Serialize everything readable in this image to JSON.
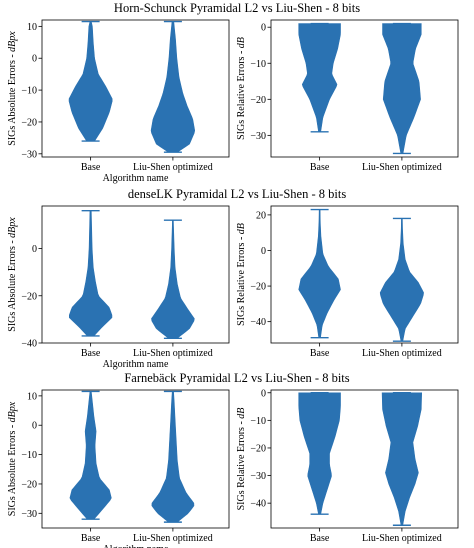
{
  "colors": {
    "violin": "#2a72b2",
    "axis": "#000000",
    "background": "#ffffff"
  },
  "rows": [
    {
      "title": "Horn-Schunck Pyramidal L2 vs Liu-Shen - 8 bits"
    },
    {
      "title": "denseLK Pyramidal L2 vs Liu-Shen - 8 bits"
    },
    {
      "title": "Farnebäck Pyramidal L2 vs Liu-Shen - 8 bits"
    }
  ],
  "chart_data": [
    {
      "type": "violin",
      "row": 0,
      "col": 0,
      "xlabel": "Algorithm name",
      "ylabel": "SIGs Absolute Errors - dBpx",
      "categories": [
        "Base",
        "Liu-Shen optimized"
      ],
      "ylim": [
        -31,
        12
      ],
      "yticks": [
        10,
        0,
        -10,
        -20,
        -30
      ],
      "series": [
        {
          "min": -26,
          "max": 11.5,
          "profile": [
            [
              -26,
              0.18
            ],
            [
              -22,
              0.55
            ],
            [
              -17,
              0.85
            ],
            [
              -13,
              1.0
            ],
            [
              -9,
              0.7
            ],
            [
              -5,
              0.35
            ],
            [
              0,
              0.18
            ],
            [
              5,
              0.12
            ],
            [
              10,
              0.08
            ],
            [
              11.5,
              0.03
            ]
          ]
        },
        {
          "min": -29.5,
          "max": 11.5,
          "profile": [
            [
              -29.5,
              0.2
            ],
            [
              -27,
              0.75
            ],
            [
              -23,
              1.0
            ],
            [
              -19,
              0.9
            ],
            [
              -15,
              0.65
            ],
            [
              -11,
              0.45
            ],
            [
              -6,
              0.28
            ],
            [
              0,
              0.18
            ],
            [
              6,
              0.12
            ],
            [
              11.5,
              0.04
            ]
          ]
        }
      ]
    },
    {
      "type": "violin",
      "row": 0,
      "col": 1,
      "xlabel": "",
      "ylabel": "SIGs Relative Errors - dB",
      "categories": [
        "Base",
        "Liu-Shen optimized"
      ],
      "ylim": [
        -36,
        2
      ],
      "yticks": [
        0,
        -10,
        -20,
        -30
      ],
      "series": [
        {
          "min": -29,
          "max": 1,
          "profile": [
            [
              -29,
              0.05
            ],
            [
              -25,
              0.15
            ],
            [
              -20,
              0.45
            ],
            [
              -16,
              0.8
            ],
            [
              -13,
              0.55
            ],
            [
              -10,
              0.62
            ],
            [
              -6,
              0.82
            ],
            [
              -2,
              0.95
            ],
            [
              1,
              0.95
            ]
          ]
        },
        {
          "min": -35,
          "max": 1,
          "profile": [
            [
              -35,
              0.05
            ],
            [
              -30,
              0.2
            ],
            [
              -25,
              0.55
            ],
            [
              -20,
              0.85
            ],
            [
              -15,
              0.78
            ],
            [
              -10,
              0.5
            ],
            [
              -6,
              0.62
            ],
            [
              -2,
              0.88
            ],
            [
              1,
              0.88
            ]
          ]
        }
      ]
    },
    {
      "type": "violin",
      "row": 1,
      "col": 0,
      "xlabel": "Algorithm name",
      "ylabel": "SIGs Absolute Errors - dBpx",
      "categories": [
        "Base",
        "Liu-Shen optimized"
      ],
      "ylim": [
        -40,
        18
      ],
      "yticks": [
        0,
        -20,
        -40
      ],
      "series": [
        {
          "min": -37,
          "max": 16,
          "profile": [
            [
              -37,
              0.15
            ],
            [
              -33,
              0.55
            ],
            [
              -29,
              1.0
            ],
            [
              -25,
              0.85
            ],
            [
              -20,
              0.35
            ],
            [
              -14,
              0.22
            ],
            [
              -8,
              0.12
            ],
            [
              0,
              0.07
            ],
            [
              8,
              0.05
            ],
            [
              16,
              0.03
            ]
          ]
        },
        {
          "min": -38,
          "max": 12,
          "profile": [
            [
              -38,
              0.2
            ],
            [
              -34,
              0.75
            ],
            [
              -30,
              1.0
            ],
            [
              -26,
              0.7
            ],
            [
              -21,
              0.35
            ],
            [
              -15,
              0.2
            ],
            [
              -8,
              0.1
            ],
            [
              0,
              0.06
            ],
            [
              6,
              0.04
            ],
            [
              12,
              0.02
            ]
          ]
        }
      ]
    },
    {
      "type": "violin",
      "row": 1,
      "col": 1,
      "xlabel": "",
      "ylabel": "SIGs Relative Errors - dB",
      "categories": [
        "Base",
        "Liu-Shen optimized"
      ],
      "ylim": [
        -52,
        25
      ],
      "yticks": [
        20,
        0,
        -20,
        -40
      ],
      "series": [
        {
          "min": -49,
          "max": 23,
          "profile": [
            [
              -49,
              0.04
            ],
            [
              -42,
              0.12
            ],
            [
              -35,
              0.35
            ],
            [
              -28,
              0.65
            ],
            [
              -22,
              0.95
            ],
            [
              -16,
              0.85
            ],
            [
              -9,
              0.4
            ],
            [
              -2,
              0.15
            ],
            [
              8,
              0.06
            ],
            [
              16,
              0.03
            ],
            [
              23,
              0.02
            ]
          ]
        },
        {
          "min": -51,
          "max": 18,
          "profile": [
            [
              -51,
              0.04
            ],
            [
              -44,
              0.15
            ],
            [
              -37,
              0.5
            ],
            [
              -30,
              0.85
            ],
            [
              -24,
              1.0
            ],
            [
              -18,
              0.75
            ],
            [
              -12,
              0.35
            ],
            [
              -5,
              0.15
            ],
            [
              4,
              0.06
            ],
            [
              12,
              0.03
            ],
            [
              18,
              0.02
            ]
          ]
        }
      ]
    },
    {
      "type": "violin",
      "row": 2,
      "col": 0,
      "xlabel": "Algorithm name",
      "ylabel": "SIGs Absolute Errors - dBpx",
      "categories": [
        "Base",
        "Liu-Shen optimized"
      ],
      "ylim": [
        -35,
        12
      ],
      "yticks": [
        10,
        0,
        -10,
        -20,
        -30
      ],
      "series": [
        {
          "min": -32,
          "max": 11.5,
          "profile": [
            [
              -32,
              0.15
            ],
            [
              -29,
              0.5
            ],
            [
              -25,
              0.95
            ],
            [
              -22,
              0.85
            ],
            [
              -18,
              0.4
            ],
            [
              -13,
              0.25
            ],
            [
              -7,
              0.2
            ],
            [
              -2,
              0.25
            ],
            [
              3,
              0.15
            ],
            [
              8,
              0.08
            ],
            [
              11.5,
              0.03
            ]
          ]
        },
        {
          "min": -33,
          "max": 11.5,
          "profile": [
            [
              -33,
              0.2
            ],
            [
              -30,
              0.7
            ],
            [
              -27,
              1.0
            ],
            [
              -23,
              0.6
            ],
            [
              -18,
              0.3
            ],
            [
              -12,
              0.2
            ],
            [
              -5,
              0.15
            ],
            [
              2,
              0.1
            ],
            [
              8,
              0.06
            ],
            [
              11.5,
              0.03
            ]
          ]
        }
      ]
    },
    {
      "type": "violin",
      "row": 2,
      "col": 1,
      "xlabel": "",
      "ylabel": "SIGs Relative Errors - dB",
      "categories": [
        "Base",
        "Liu-Shen optimized"
      ],
      "ylim": [
        -49,
        1
      ],
      "yticks": [
        0,
        -10,
        -20,
        -30,
        -40
      ],
      "series": [
        {
          "min": -44,
          "max": 0,
          "profile": [
            [
              -44,
              0.05
            ],
            [
              -40,
              0.15
            ],
            [
              -35,
              0.35
            ],
            [
              -30,
              0.55
            ],
            [
              -26,
              0.45
            ],
            [
              -22,
              0.45
            ],
            [
              -16,
              0.7
            ],
            [
              -10,
              0.9
            ],
            [
              -5,
              0.95
            ],
            [
              0,
              0.95
            ]
          ]
        },
        {
          "min": -48,
          "max": 0,
          "profile": [
            [
              -48,
              0.04
            ],
            [
              -43,
              0.15
            ],
            [
              -38,
              0.35
            ],
            [
              -33,
              0.6
            ],
            [
              -29,
              0.75
            ],
            [
              -24,
              0.6
            ],
            [
              -18,
              0.5
            ],
            [
              -12,
              0.72
            ],
            [
              -6,
              0.88
            ],
            [
              0,
              0.9
            ]
          ]
        }
      ]
    }
  ]
}
